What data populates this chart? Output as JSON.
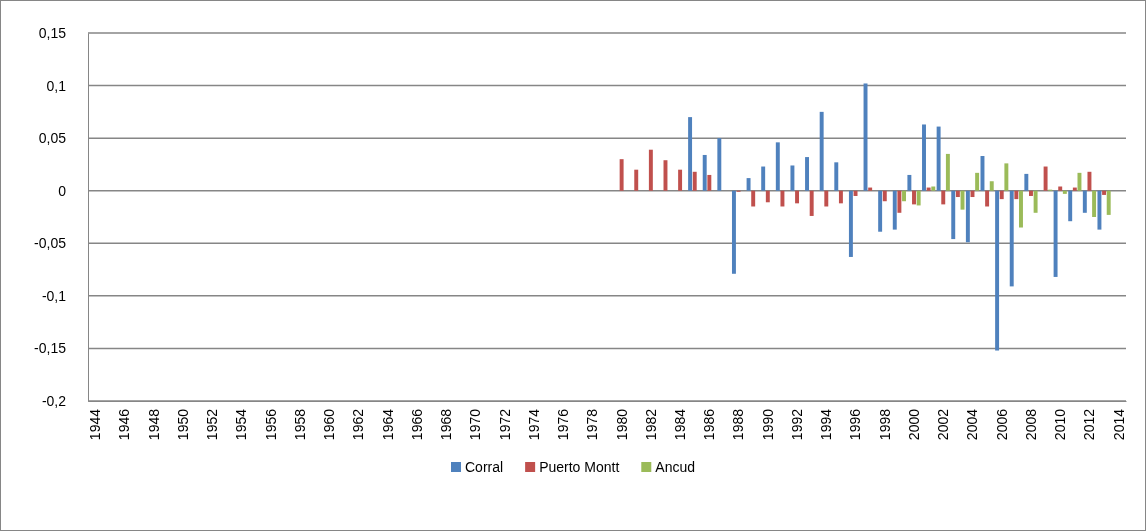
{
  "chart_data": {
    "type": "bar",
    "categories": [
      "1944",
      null,
      "1946",
      null,
      "1948",
      null,
      "1950",
      null,
      "1952",
      null,
      "1954",
      null,
      "1956",
      null,
      "1958",
      null,
      "1960",
      null,
      "1962",
      null,
      "1964",
      null,
      "1966",
      null,
      "1968",
      null,
      "1970",
      null,
      "1972",
      null,
      "1974",
      null,
      "1976",
      null,
      "1978",
      null,
      "1980",
      null,
      "1982",
      null,
      "1984",
      null,
      "1986",
      null,
      "1988",
      null,
      "1990",
      null,
      "1992",
      null,
      "1994",
      null,
      "1996",
      null,
      "1998",
      null,
      "2000",
      null,
      "2002",
      null,
      "2004",
      null,
      "2006",
      null,
      "2008",
      null,
      "2010",
      null,
      "2012",
      null,
      "2014"
    ],
    "series": [
      {
        "name": "Corral",
        "color": "#4f81bd",
        "values": [
          null,
          null,
          null,
          null,
          null,
          null,
          null,
          null,
          null,
          null,
          null,
          null,
          null,
          null,
          null,
          null,
          null,
          null,
          null,
          null,
          null,
          null,
          null,
          null,
          null,
          null,
          null,
          null,
          null,
          null,
          null,
          null,
          null,
          null,
          null,
          null,
          null,
          null,
          null,
          null,
          null,
          0.07,
          0.034,
          0.05,
          -0.079,
          0.012,
          0.023,
          0.046,
          0.024,
          0.032,
          0.075,
          0.027,
          -0.063,
          0.102,
          -0.039,
          -0.037,
          0.015,
          0.063,
          0.061,
          -0.046,
          -0.049,
          0.033,
          -0.152,
          -0.091,
          0.016,
          null,
          -0.082,
          -0.029,
          -0.021,
          -0.037,
          null
        ]
      },
      {
        "name": "Puerto Montt",
        "color": "#c0504d",
        "values": [
          null,
          null,
          null,
          null,
          null,
          null,
          null,
          null,
          null,
          null,
          null,
          null,
          null,
          null,
          null,
          null,
          null,
          null,
          null,
          null,
          null,
          null,
          null,
          null,
          null,
          null,
          null,
          null,
          null,
          null,
          null,
          null,
          null,
          null,
          null,
          null,
          0.03,
          0.02,
          0.039,
          0.029,
          0.02,
          0.018,
          0.015,
          null,
          -0.001,
          -0.015,
          -0.011,
          -0.015,
          -0.012,
          -0.024,
          -0.015,
          -0.012,
          -0.005,
          0.003,
          -0.01,
          -0.021,
          -0.013,
          0.003,
          -0.013,
          -0.006,
          -0.006,
          -0.015,
          -0.008,
          -0.008,
          -0.005,
          0.023,
          0.004,
          0.003,
          0.018,
          -0.004,
          null
        ]
      },
      {
        "name": "Ancud",
        "color": "#9bbb59",
        "values": [
          null,
          null,
          null,
          null,
          null,
          null,
          null,
          null,
          null,
          null,
          null,
          null,
          null,
          null,
          null,
          null,
          null,
          null,
          null,
          null,
          null,
          null,
          null,
          null,
          null,
          null,
          null,
          null,
          null,
          null,
          null,
          null,
          null,
          null,
          null,
          null,
          null,
          null,
          null,
          null,
          null,
          null,
          null,
          null,
          null,
          null,
          null,
          null,
          null,
          null,
          null,
          null,
          null,
          null,
          null,
          -0.01,
          -0.014,
          0.004,
          0.035,
          -0.018,
          0.017,
          0.009,
          0.026,
          -0.035,
          -0.021,
          0.001,
          -0.003,
          0.017,
          -0.025,
          -0.023,
          null
        ]
      }
    ],
    "ylim": [
      -0.2,
      0.15
    ],
    "yticks": [
      {
        "value": -0.2,
        "label": "-0,2"
      },
      {
        "value": -0.15,
        "label": "-0,15"
      },
      {
        "value": -0.1,
        "label": "-0,1"
      },
      {
        "value": -0.05,
        "label": "-0,05"
      },
      {
        "value": 0,
        "label": "0"
      },
      {
        "value": 0.05,
        "label": "0,05"
      },
      {
        "value": 0.1,
        "label": "0,1"
      },
      {
        "value": 0.15,
        "label": "0,15"
      }
    ],
    "grid": "y",
    "legend": "bottom"
  }
}
